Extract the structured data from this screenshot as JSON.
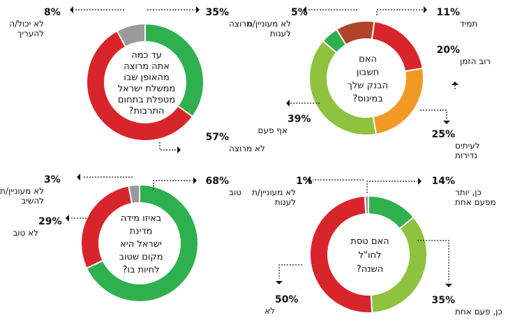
{
  "colors": {
    "dark_red": "#b0442a",
    "red": "#d8252b",
    "orange": "#f09a25",
    "light_green": "#8fc23f",
    "green": "#2fb04f",
    "gray": "#9a9a9a"
  },
  "chart_data": [
    {
      "type": "pie",
      "id": "bank",
      "question": [
        "האם",
        "חשבון",
        "הבנק שלך",
        "במינוס?"
      ],
      "slices": [
        {
          "label": "תמיד",
          "value": 11,
          "pct_text": "11%",
          "color": "#b0442a"
        },
        {
          "label": "רוב הזמן",
          "value": 20,
          "pct_text": "20%",
          "color": "#d8252b"
        },
        {
          "label": "לעיתים נדירות",
          "value": 25,
          "pct_text": "25%",
          "color": "#f09a25"
        },
        {
          "label": "אף פעם",
          "value": 39,
          "pct_text": "39%",
          "color": "#8fc23f"
        },
        {
          "label": "לא מעוניין/ת לענות",
          "value": 5,
          "pct_text": "5%",
          "color": "#2fb04f"
        }
      ]
    },
    {
      "type": "pie",
      "id": "culture",
      "question": [
        "עד כמה",
        "אתה מרוצה",
        "מהאופן שבו",
        "ממשלת ישראל",
        "מטפלת בתחום",
        "התרבות?"
      ],
      "slices": [
        {
          "label": "מרוצה",
          "value": 35,
          "pct_text": "35%",
          "color": "#2fb04f"
        },
        {
          "label": "לא מרוצה",
          "value": 57,
          "pct_text": "57%",
          "color": "#d8252b"
        },
        {
          "label": "לא יכול/ה להעריך",
          "value": 8,
          "pct_text": "8%",
          "color": "#9a9a9a"
        }
      ]
    },
    {
      "type": "pie",
      "id": "abroad",
      "question": [
        "האם טסת",
        "לחו\"ל",
        "השנה?"
      ],
      "slices": [
        {
          "label": "כן, יותר מפעם אחת",
          "value": 14,
          "pct_text": "14%",
          "color": "#2fb04f"
        },
        {
          "label": "כן, פעם אחת",
          "value": 35,
          "pct_text": "35%",
          "color": "#8fc23f"
        },
        {
          "label": "לא",
          "value": 50,
          "pct_text": "50%",
          "color": "#d8252b"
        },
        {
          "label": "לא מעוניין/ת לענות",
          "value": 1,
          "pct_text": "1%",
          "color": "#9a9a9a"
        }
      ]
    },
    {
      "type": "pie",
      "id": "live",
      "question": [
        "באיזו מידה",
        "מדינת",
        "ישראל היא",
        "מקום שטוב",
        "לחיות בו?"
      ],
      "slices": [
        {
          "label": "טוב",
          "value": 68,
          "pct_text": "68%",
          "color": "#2fb04f"
        },
        {
          "label": "לא טוב",
          "value": 29,
          "pct_text": "29%",
          "color": "#d8252b"
        },
        {
          "label": "לא מעוניין/ת להשיב",
          "value": 3,
          "pct_text": "3%",
          "color": "#9a9a9a"
        }
      ]
    }
  ]
}
